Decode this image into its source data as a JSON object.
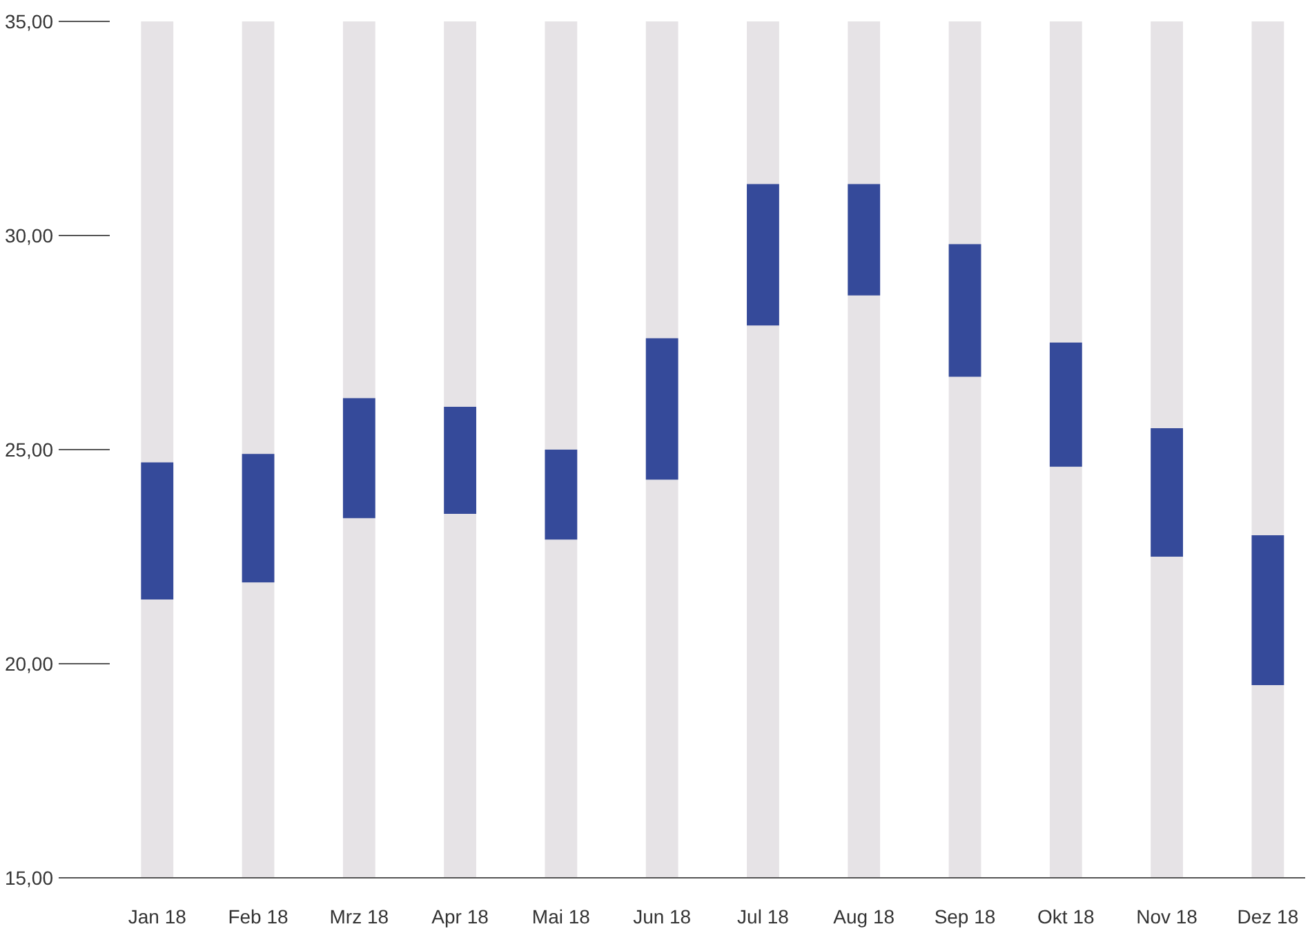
{
  "chart_data": {
    "type": "bar",
    "categories": [
      "Jan 18",
      "Feb 18",
      "Mrz 18",
      "Apr 18",
      "Mai 18",
      "Jun 18",
      "Jul 18",
      "Aug 18",
      "Sep 18",
      "Okt 18",
      "Nov 18",
      "Dez 18"
    ],
    "series": [
      {
        "color": "#e6e3e6",
        "base": [
          15,
          15,
          15,
          15,
          15,
          15,
          15,
          15,
          15,
          15,
          15,
          15
        ],
        "values": [
          20,
          20,
          20,
          20,
          20,
          20,
          20,
          20,
          20,
          20,
          20,
          20
        ]
      },
      {
        "color": "#354a9a",
        "base": [
          21.5,
          21.9,
          23.4,
          23.5,
          22.9,
          24.3,
          27.9,
          28.6,
          26.7,
          24.6,
          22.5,
          19.5
        ],
        "values": [
          3.2,
          3.0,
          2.8,
          2.5,
          2.1,
          3.3,
          3.3,
          2.6,
          3.1,
          2.9,
          3.0,
          3.5
        ]
      }
    ],
    "ylim": [
      15,
      35
    ],
    "yticks": [
      {
        "value": 15,
        "label": "15,00"
      },
      {
        "value": 20,
        "label": "20,00"
      },
      {
        "value": 25,
        "label": "25,00"
      },
      {
        "value": 30,
        "label": "30,00"
      },
      {
        "value": 35,
        "label": "35,00"
      }
    ],
    "grid": false
  }
}
